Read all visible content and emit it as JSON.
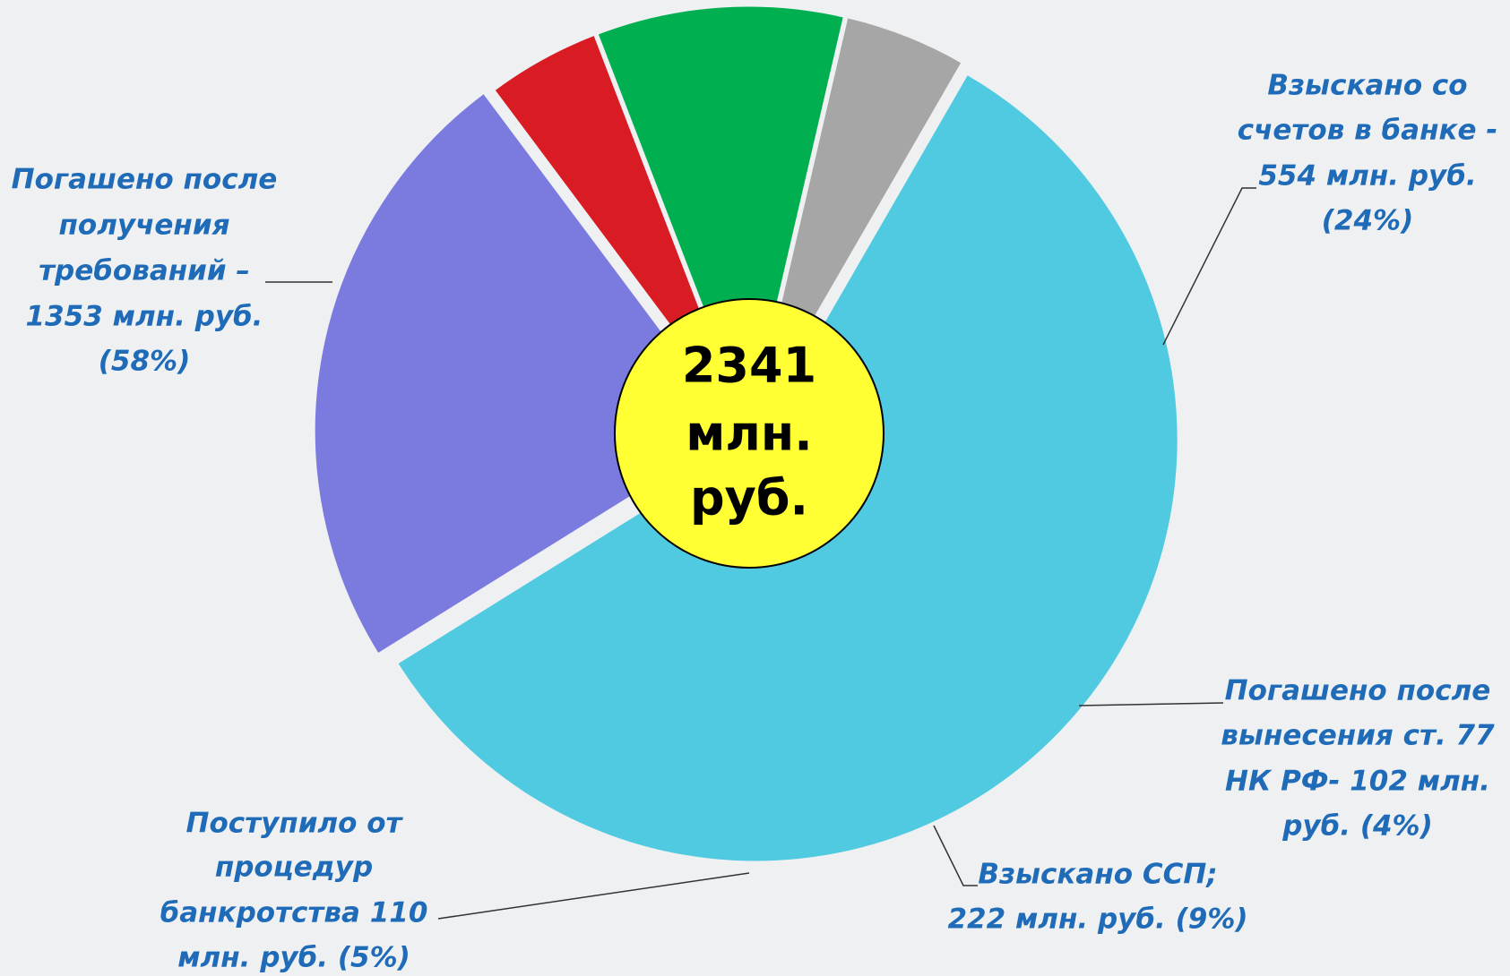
{
  "chart_data": {
    "type": "pie",
    "categories": [
      null,
      null,
      null,
      null,
      null
    ],
    "values": [
      1353,
      554,
      102,
      222,
      110
    ],
    "value_labels": [
      [
        "Погашено после",
        "получения",
        "требований –",
        "1353 млн. руб.",
        "(58%)"
      ],
      [
        "Взыскано со",
        "счетов в банке -",
        "554 млн. руб.",
        "(24%)"
      ],
      [
        "Погашено после",
        "вынесения ст. 77",
        "НК РФ- 102 млн.",
        "руб. (4%)"
      ],
      [
        "Взыскано ССП;",
        "222 млн. руб. (9%)"
      ],
      [
        "Поступило от",
        "процедур",
        "банкротства 110",
        "млн. руб. (5%)"
      ]
    ],
    "colors": [
      "#4fcae0",
      "#7b7bdf",
      "#d91c24",
      "#00b050",
      "#a6a6a6"
    ],
    "center_label": [
      "2341",
      "млн.",
      "руб."
    ]
  }
}
